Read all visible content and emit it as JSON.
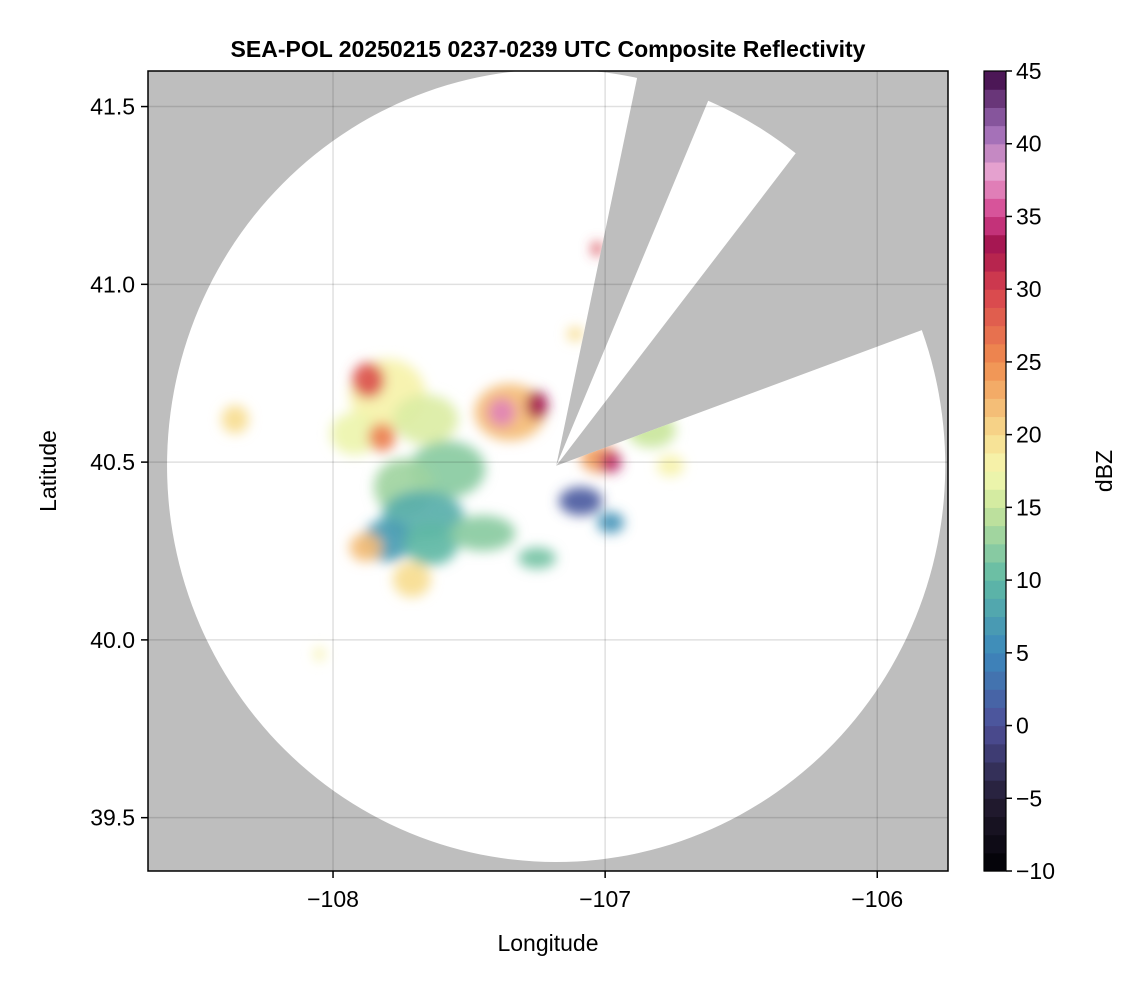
{
  "chart_data": {
    "type": "heatmap",
    "title": "SEA-POL 20250215 0237-0239 UTC Composite Reflectivity",
    "xlabel": "Longitude",
    "ylabel": "Latitude",
    "xlim": [
      -108.68,
      -105.74
    ],
    "ylim": [
      39.35,
      41.6
    ],
    "xticks": [
      {
        "value": -108,
        "label": "−108"
      },
      {
        "value": -107,
        "label": "−107"
      },
      {
        "value": -106,
        "label": "−106"
      }
    ],
    "yticks": [
      {
        "value": 39.5,
        "label": "39.5"
      },
      {
        "value": 40.0,
        "label": "40.0"
      },
      {
        "value": 40.5,
        "label": "40.5"
      },
      {
        "value": 41.0,
        "label": "41.0"
      },
      {
        "value": 41.5,
        "label": "41.5"
      }
    ],
    "grid": true,
    "radar": {
      "center_lon": -107.18,
      "center_lat": 40.49,
      "range_lon_deg": 1.43,
      "range_lat_deg": 1.115,
      "blocked_sectors_deg": [
        [
          12,
          23
        ],
        [
          38,
          70
        ]
      ]
    },
    "no_data_color": "#bebebe",
    "colorbar": {
      "label": "dBZ",
      "min": -10,
      "max": 45,
      "ticks": [
        {
          "value": -10,
          "label": "−10"
        },
        {
          "value": -5,
          "label": "−5"
        },
        {
          "value": 0,
          "label": "0"
        },
        {
          "value": 5,
          "label": "5"
        },
        {
          "value": 10,
          "label": "10"
        },
        {
          "value": 15,
          "label": "15"
        },
        {
          "value": 20,
          "label": "20"
        },
        {
          "value": 25,
          "label": "25"
        },
        {
          "value": 30,
          "label": "30"
        },
        {
          "value": 35,
          "label": "35"
        },
        {
          "value": 40,
          "label": "40"
        },
        {
          "value": 45,
          "label": "45"
        }
      ],
      "color_stops": [
        {
          "value": -10,
          "color": "#000004"
        },
        {
          "value": -5,
          "color": "#241d33"
        },
        {
          "value": 0,
          "color": "#4e4f99"
        },
        {
          "value": 5,
          "color": "#3c88bc"
        },
        {
          "value": 10,
          "color": "#5fb9a5"
        },
        {
          "value": 15,
          "color": "#c9e69c"
        },
        {
          "value": 17.5,
          "color": "#f6f8b0"
        },
        {
          "value": 20,
          "color": "#f7dc8f"
        },
        {
          "value": 25,
          "color": "#f08d4f"
        },
        {
          "value": 30,
          "color": "#d7424e"
        },
        {
          "value": 33,
          "color": "#a3144e"
        },
        {
          "value": 35,
          "color": "#d23f8c"
        },
        {
          "value": 38,
          "color": "#e8a3d0"
        },
        {
          "value": 41,
          "color": "#9b6ab4"
        },
        {
          "value": 45,
          "color": "#3d0845"
        }
      ]
    },
    "echo_cells": [
      {
        "lon": -107.8,
        "lat": 40.69,
        "rlon": 0.14,
        "rlat": 0.1,
        "dbz": 18
      },
      {
        "lon": -107.87,
        "lat": 40.73,
        "rlon": 0.06,
        "rlat": 0.05,
        "dbz": 29
      },
      {
        "lon": -107.66,
        "lat": 40.62,
        "rlon": 0.12,
        "rlat": 0.07,
        "dbz": 16
      },
      {
        "lon": -107.92,
        "lat": 40.58,
        "rlon": 0.09,
        "rlat": 0.06,
        "dbz": 17
      },
      {
        "lon": -107.82,
        "lat": 40.57,
        "rlon": 0.05,
        "rlat": 0.04,
        "dbz": 26
      },
      {
        "lon": -107.58,
        "lat": 40.48,
        "rlon": 0.14,
        "rlat": 0.08,
        "dbz": 12
      },
      {
        "lon": -107.74,
        "lat": 40.43,
        "rlon": 0.11,
        "rlat": 0.08,
        "dbz": 13
      },
      {
        "lon": -107.67,
        "lat": 40.35,
        "rlon": 0.15,
        "rlat": 0.07,
        "dbz": 9
      },
      {
        "lon": -107.8,
        "lat": 40.28,
        "rlon": 0.09,
        "rlat": 0.06,
        "dbz": 7
      },
      {
        "lon": -107.64,
        "lat": 40.27,
        "rlon": 0.1,
        "rlat": 0.06,
        "dbz": 10
      },
      {
        "lon": -107.45,
        "lat": 40.3,
        "rlon": 0.12,
        "rlat": 0.05,
        "dbz": 12
      },
      {
        "lon": -107.88,
        "lat": 40.26,
        "rlon": 0.06,
        "rlat": 0.04,
        "dbz": 22
      },
      {
        "lon": -107.71,
        "lat": 40.17,
        "rlon": 0.07,
        "rlat": 0.05,
        "dbz": 20
      },
      {
        "lon": -107.35,
        "lat": 40.64,
        "rlon": 0.13,
        "rlat": 0.08,
        "dbz": 22
      },
      {
        "lon": -107.38,
        "lat": 40.64,
        "rlon": 0.05,
        "rlat": 0.04,
        "dbz": 37
      },
      {
        "lon": -107.25,
        "lat": 40.66,
        "rlon": 0.04,
        "rlat": 0.04,
        "dbz": 33
      },
      {
        "lon": -108.36,
        "lat": 40.62,
        "rlon": 0.05,
        "rlat": 0.04,
        "dbz": 20
      },
      {
        "lon": -107.25,
        "lat": 40.23,
        "rlon": 0.07,
        "rlat": 0.03,
        "dbz": 11
      },
      {
        "lon": -107.02,
        "lat": 40.51,
        "rlon": 0.07,
        "rlat": 0.04,
        "dbz": 24
      },
      {
        "lon": -106.98,
        "lat": 40.5,
        "rlon": 0.04,
        "rlat": 0.03,
        "dbz": 34
      },
      {
        "lon": -106.83,
        "lat": 40.59,
        "rlon": 0.09,
        "rlat": 0.05,
        "dbz": 15
      },
      {
        "lon": -106.76,
        "lat": 40.49,
        "rlon": 0.05,
        "rlat": 0.03,
        "dbz": 18
      },
      {
        "lon": -107.09,
        "lat": 40.39,
        "rlon": 0.08,
        "rlat": 0.04,
        "dbz": 1
      },
      {
        "lon": -106.98,
        "lat": 40.33,
        "rlon": 0.05,
        "rlat": 0.03,
        "dbz": 6
      },
      {
        "lon": -107.03,
        "lat": 41.1,
        "rlon": 0.02,
        "rlat": 0.02,
        "dbz": 30
      },
      {
        "lon": -107.11,
        "lat": 40.86,
        "rlon": 0.03,
        "rlat": 0.02,
        "dbz": 20
      },
      {
        "lon": -108.05,
        "lat": 39.96,
        "rlon": 0.02,
        "rlat": 0.02,
        "dbz": 18
      }
    ]
  }
}
